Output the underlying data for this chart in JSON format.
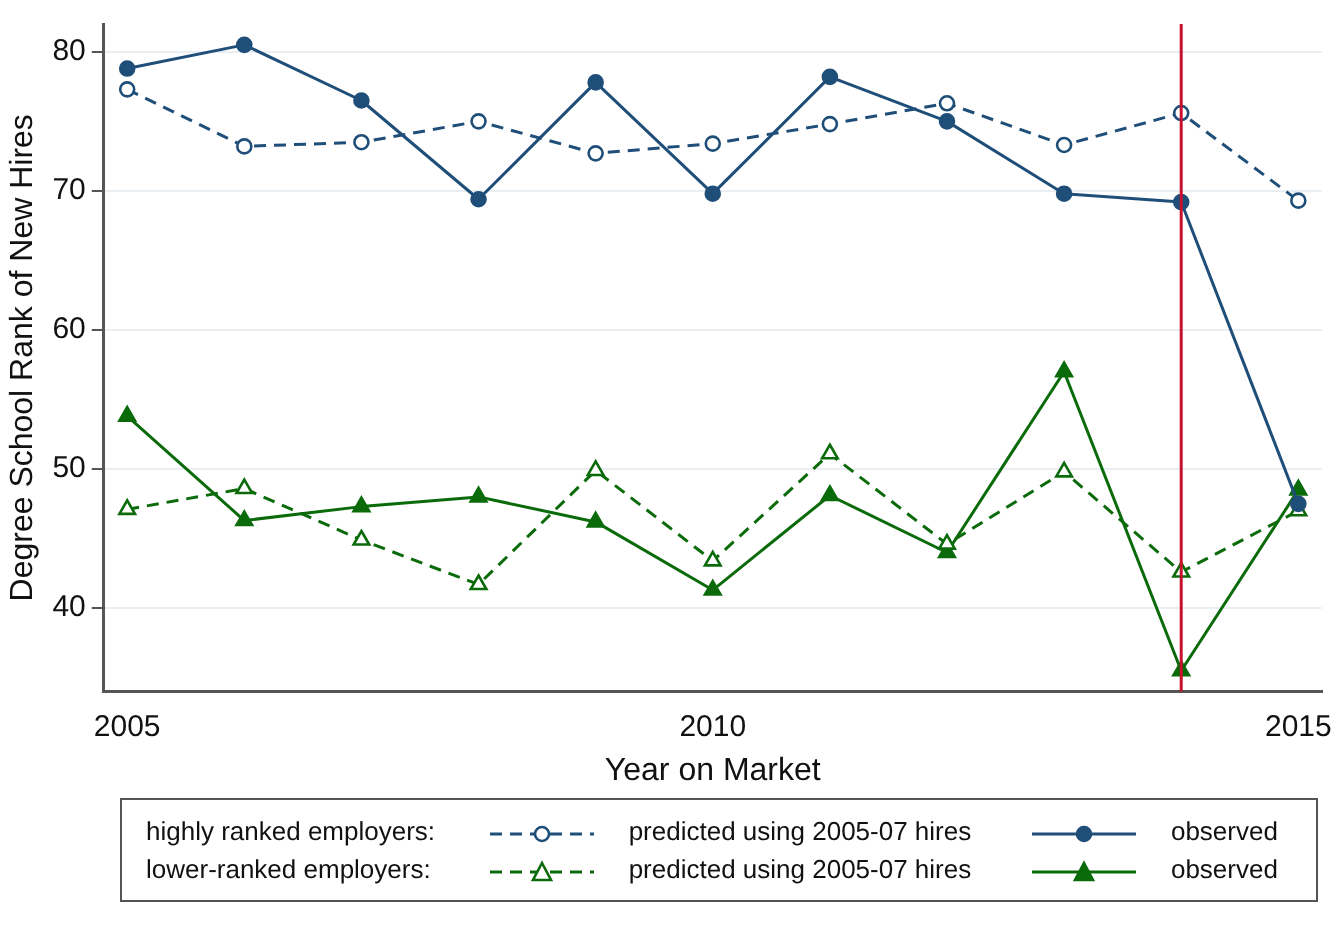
{
  "chart_data": {
    "type": "line",
    "xlabel": "Year on Market",
    "ylabel": "Degree School Rank of New Hires",
    "x": [
      2005,
      2006,
      2007,
      2008,
      2009,
      2010,
      2011,
      2012,
      2013,
      2014,
      2015
    ],
    "xlim": [
      2004.8,
      2015.2
    ],
    "xticks": [
      2005,
      2010,
      2015
    ],
    "ylim": [
      34,
      82
    ],
    "yticks": [
      40,
      50,
      60,
      70,
      80
    ],
    "grid": "y",
    "legend": "bottom",
    "annotations": [
      "highly ranked employers:",
      "lower-ranked employers:"
    ],
    "ref_lines": [
      {
        "axis": "x",
        "value": 2014,
        "label": null,
        "color": "#c8102e"
      }
    ],
    "series": [
      {
        "name": "predicted using 2005-07 hires",
        "color": "#1f4e79",
        "marker": "circle",
        "line_style": "dashed",
        "values": [
          77.3,
          73.2,
          73.5,
          75.0,
          72.7,
          73.4,
          74.8,
          76.3,
          73.3,
          75.6,
          69.3
        ]
      },
      {
        "name": "observed",
        "color": "#1f4e79",
        "marker": "circle",
        "line_style": "solid",
        "values": [
          78.8,
          80.5,
          76.5,
          69.4,
          77.8,
          69.8,
          78.2,
          75.0,
          69.8,
          69.2,
          47.5
        ]
      },
      {
        "name": "predicted using 2005-07 hires",
        "color": "#0b6b0b",
        "marker": "triangle",
        "line_style": "dashed",
        "values": [
          47.1,
          48.6,
          44.9,
          41.7,
          49.9,
          43.4,
          51.1,
          44.6,
          49.8,
          42.6,
          47.0
        ]
      },
      {
        "name": "observed",
        "color": "#0b6b0b",
        "marker": "triangle",
        "line_style": "solid",
        "values": [
          53.8,
          46.3,
          47.3,
          48.0,
          46.2,
          41.3,
          48.1,
          44.0,
          57.0,
          35.5,
          48.5
        ]
      }
    ]
  }
}
